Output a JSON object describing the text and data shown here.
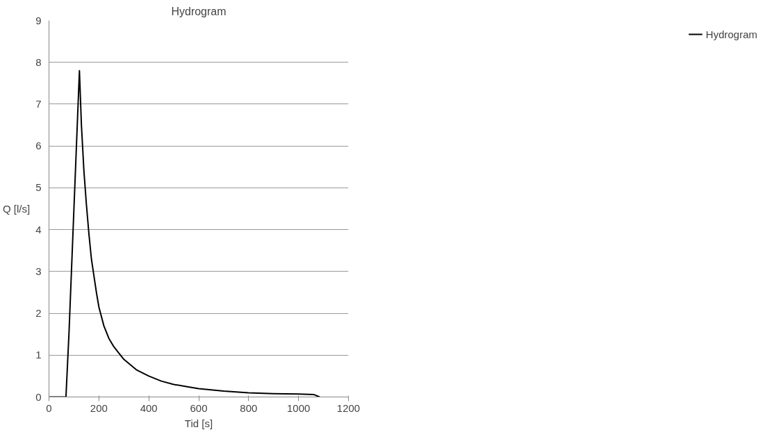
{
  "chart_data": {
    "type": "line",
    "title": "Hydrogram",
    "xlabel": "Tid [s]",
    "ylabel": "Q [l/s]",
    "series": [
      {
        "name": "Hydrogram",
        "color": "#000000",
        "x": [
          0,
          68,
          80,
          100,
          122,
          130,
          140,
          150,
          160,
          170,
          180,
          190,
          200,
          220,
          240,
          260,
          280,
          300,
          350,
          400,
          450,
          500,
          550,
          600,
          700,
          800,
          900,
          1000,
          1060,
          1085
        ],
        "values": [
          0,
          0,
          1.5,
          4.5,
          7.8,
          6.5,
          5.4,
          4.6,
          3.9,
          3.3,
          2.9,
          2.5,
          2.15,
          1.7,
          1.4,
          1.2,
          1.05,
          0.9,
          0.65,
          0.5,
          0.38,
          0.3,
          0.25,
          0.2,
          0.14,
          0.1,
          0.08,
          0.07,
          0.06,
          0
        ]
      }
    ],
    "xlim": [
      0,
      1200
    ],
    "xticks": [
      0,
      200,
      400,
      600,
      800,
      1000,
      1200
    ],
    "ylim": [
      0,
      9
    ],
    "yticks": [
      0,
      1,
      2,
      3,
      4,
      5,
      6,
      7,
      8,
      9
    ],
    "grid": "y",
    "legend": "right",
    "marker": "none",
    "line_style": "solid"
  }
}
